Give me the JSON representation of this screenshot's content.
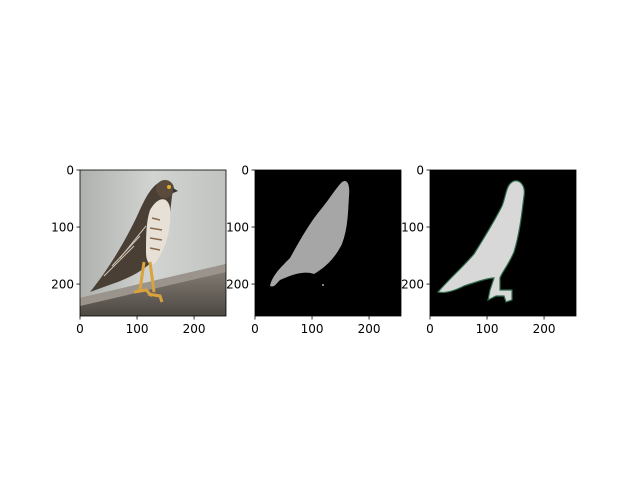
{
  "chart_data": [
    {
      "type": "image",
      "panel": "photo",
      "content": "hawk-photo",
      "xlim": [
        0,
        256
      ],
      "ylim": [
        256,
        0
      ],
      "xticks": [
        0,
        100,
        200
      ],
      "yticks": [
        0,
        100,
        200
      ],
      "x_tick_labels": [
        "0",
        "100",
        "200"
      ],
      "y_tick_labels": [
        "0",
        "100",
        "200"
      ],
      "colors": {
        "background_sky": "#c8cac8",
        "bird_dark": "#4a3f34",
        "bird_light": "#e6e0d6",
        "post": "#6b625a",
        "legs": "#d9a23a"
      }
    },
    {
      "type": "image",
      "panel": "predicted-mask",
      "content": "coarse-gray-bird-mask",
      "xlim": [
        0,
        256
      ],
      "ylim": [
        256,
        0
      ],
      "xticks": [
        0,
        100,
        200
      ],
      "yticks": [
        0,
        100,
        200
      ],
      "x_tick_labels": [
        "0",
        "100",
        "200"
      ],
      "y_tick_labels": [
        "0",
        "100",
        "200"
      ],
      "colors": {
        "background": "#000000",
        "mask": "#a6a6a6"
      }
    },
    {
      "type": "image",
      "panel": "ground-truth-mask",
      "content": "detailed-bird-mask-with-outline",
      "xlim": [
        0,
        256
      ],
      "ylim": [
        256,
        0
      ],
      "xticks": [
        0,
        100,
        200
      ],
      "yticks": [
        0,
        100,
        200
      ],
      "x_tick_labels": [
        "0",
        "100",
        "200"
      ],
      "y_tick_labels": [
        "0",
        "100",
        "200"
      ],
      "colors": {
        "background": "#000000",
        "mask": "#d8d8d8",
        "outline": "#2e6b4a"
      }
    }
  ]
}
